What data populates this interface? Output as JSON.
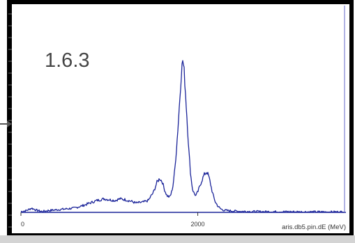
{
  "panel_label": "1.6.3",
  "colors": {
    "trace": "#1a2399",
    "frame": "#000000",
    "panel_bg": "#ffffff",
    "bottom_strip": "#d4d4d4",
    "marker_line": "#7b7fd0",
    "arrow": "#555555",
    "label_text": "#444444"
  },
  "chart_data": {
    "type": "line",
    "xlabel": "aris.db5.pin.dE (MeV)",
    "ylabel": "",
    "title": "",
    "xlim": [
      0,
      3660
    ],
    "ylim": [
      0,
      1.0
    ],
    "x_ticks": [
      {
        "value": 0,
        "label": "0"
      },
      {
        "value": 2000,
        "label": "2000"
      }
    ],
    "vertical_marker_x": 3660,
    "grid": false,
    "series": [
      {
        "x": [
          0,
          60,
          120,
          180,
          240,
          300,
          400,
          500,
          600,
          700,
          780,
          860,
          940,
          1000,
          1060,
          1120,
          1180,
          1250,
          1300,
          1380,
          1440,
          1500,
          1540,
          1570,
          1600,
          1620,
          1650,
          1680,
          1700,
          1720,
          1740,
          1760,
          1780,
          1800,
          1815,
          1830,
          1845,
          1860,
          1880,
          1900,
          1920,
          1940,
          1960,
          1980,
          2000,
          2040,
          2070,
          2100,
          2120,
          2140,
          2160,
          2180,
          2200,
          2230,
          2260,
          2300,
          2400,
          2500,
          2600,
          2800,
          3000,
          3200,
          3400,
          3660
        ],
        "y": [
          0.005,
          0.01,
          0.025,
          0.012,
          0.005,
          0.01,
          0.015,
          0.02,
          0.025,
          0.04,
          0.055,
          0.07,
          0.08,
          0.075,
          0.07,
          0.08,
          0.075,
          0.065,
          0.055,
          0.06,
          0.07,
          0.12,
          0.18,
          0.2,
          0.18,
          0.14,
          0.1,
          0.09,
          0.11,
          0.16,
          0.25,
          0.38,
          0.53,
          0.7,
          0.83,
          0.9,
          0.84,
          0.72,
          0.54,
          0.36,
          0.22,
          0.14,
          0.11,
          0.1,
          0.12,
          0.18,
          0.22,
          0.24,
          0.22,
          0.18,
          0.13,
          0.09,
          0.06,
          0.035,
          0.02,
          0.012,
          0.008,
          0.006,
          0.005,
          0.004,
          0.004,
          0.003,
          0.003,
          0.003
        ]
      }
    ]
  }
}
